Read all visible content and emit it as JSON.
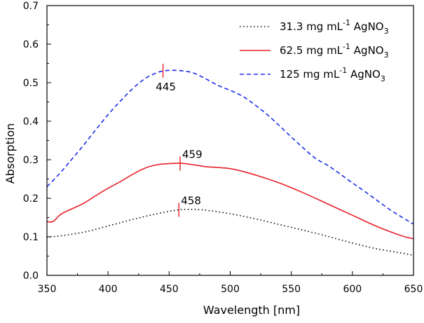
{
  "chart_data": {
    "type": "line",
    "xlabel": "Wavelength [nm]",
    "ylabel": "Absorption",
    "xlim": [
      350,
      650
    ],
    "ylim": [
      0.0,
      0.7
    ],
    "xticks": [
      350,
      400,
      450,
      500,
      550,
      600,
      650
    ],
    "yticks": [
      0.0,
      0.1,
      0.2,
      0.3,
      0.4,
      0.5,
      0.6,
      0.7
    ],
    "xtick_labels": [
      "350",
      "400",
      "450",
      "500",
      "550",
      "600",
      "650"
    ],
    "ytick_labels": [
      "0.0",
      "0.1",
      "0.2",
      "0.3",
      "0.4",
      "0.5",
      "0.6",
      "0.7"
    ],
    "legend_position": "top-right",
    "series": [
      {
        "name": "31.3 mg mL-1 AgNO3",
        "legend_parts": {
          "pre": "31.3 mg mL",
          "sup": "-1",
          "mid": " AgNO",
          "sub": "3"
        },
        "style": "dotted",
        "color": "#000000",
        "x": [
          350,
          360,
          380,
          400,
          420,
          440,
          458,
          470,
          480,
          500,
          520,
          540,
          560,
          580,
          600,
          620,
          640,
          650
        ],
        "y": [
          0.1,
          0.102,
          0.112,
          0.128,
          0.145,
          0.16,
          0.17,
          0.171,
          0.169,
          0.16,
          0.147,
          0.132,
          0.117,
          0.101,
          0.084,
          0.069,
          0.058,
          0.052
        ]
      },
      {
        "name": "62.5 mg mL-1 AgNO3",
        "legend_parts": {
          "pre": "62.5 mg mL",
          "sup": "-1",
          "mid": " AgNO",
          "sub": "3"
        },
        "style": "solid",
        "color": "#e8202a",
        "x": [
          350,
          353,
          356,
          360,
          365,
          370,
          380,
          390,
          400,
          410,
          420,
          430,
          440,
          450,
          459,
          470,
          480,
          490,
          500,
          510,
          520,
          540,
          560,
          580,
          600,
          620,
          640,
          650
        ],
        "y": [
          0.14,
          0.138,
          0.142,
          0.155,
          0.165,
          0.172,
          0.187,
          0.207,
          0.226,
          0.243,
          0.262,
          0.278,
          0.287,
          0.29,
          0.291,
          0.287,
          0.282,
          0.28,
          0.277,
          0.27,
          0.261,
          0.24,
          0.214,
          0.185,
          0.156,
          0.127,
          0.103,
          0.095
        ]
      },
      {
        "name": "125 mg mL-1 AgNO3",
        "legend_parts": {
          "pre": "125 mg mL",
          "sup": "-1",
          "mid": " AgNO",
          "sub": "3"
        },
        "style": "dashed",
        "color": "#1a2ee8",
        "x": [
          350,
          360,
          370,
          380,
          390,
          400,
          410,
          420,
          430,
          440,
          445,
          450,
          460,
          470,
          480,
          490,
          500,
          510,
          520,
          530,
          540,
          550,
          560,
          570,
          580,
          590,
          600,
          610,
          620,
          630,
          640,
          650
        ],
        "y": [
          0.23,
          0.263,
          0.3,
          0.338,
          0.378,
          0.417,
          0.452,
          0.484,
          0.51,
          0.526,
          0.53,
          0.532,
          0.531,
          0.525,
          0.51,
          0.493,
          0.48,
          0.465,
          0.443,
          0.418,
          0.389,
          0.359,
          0.33,
          0.303,
          0.285,
          0.263,
          0.24,
          0.218,
          0.195,
          0.172,
          0.152,
          0.133
        ]
      }
    ],
    "annotations": [
      {
        "label": "445",
        "x": 445,
        "y": 0.531,
        "series": 2,
        "label_position": "below"
      },
      {
        "label": "459",
        "x": 459,
        "y": 0.29,
        "series": 1,
        "label_position": "above-right"
      },
      {
        "label": "458",
        "x": 458,
        "y": 0.17,
        "series": 0,
        "label_position": "above-right"
      }
    ]
  }
}
